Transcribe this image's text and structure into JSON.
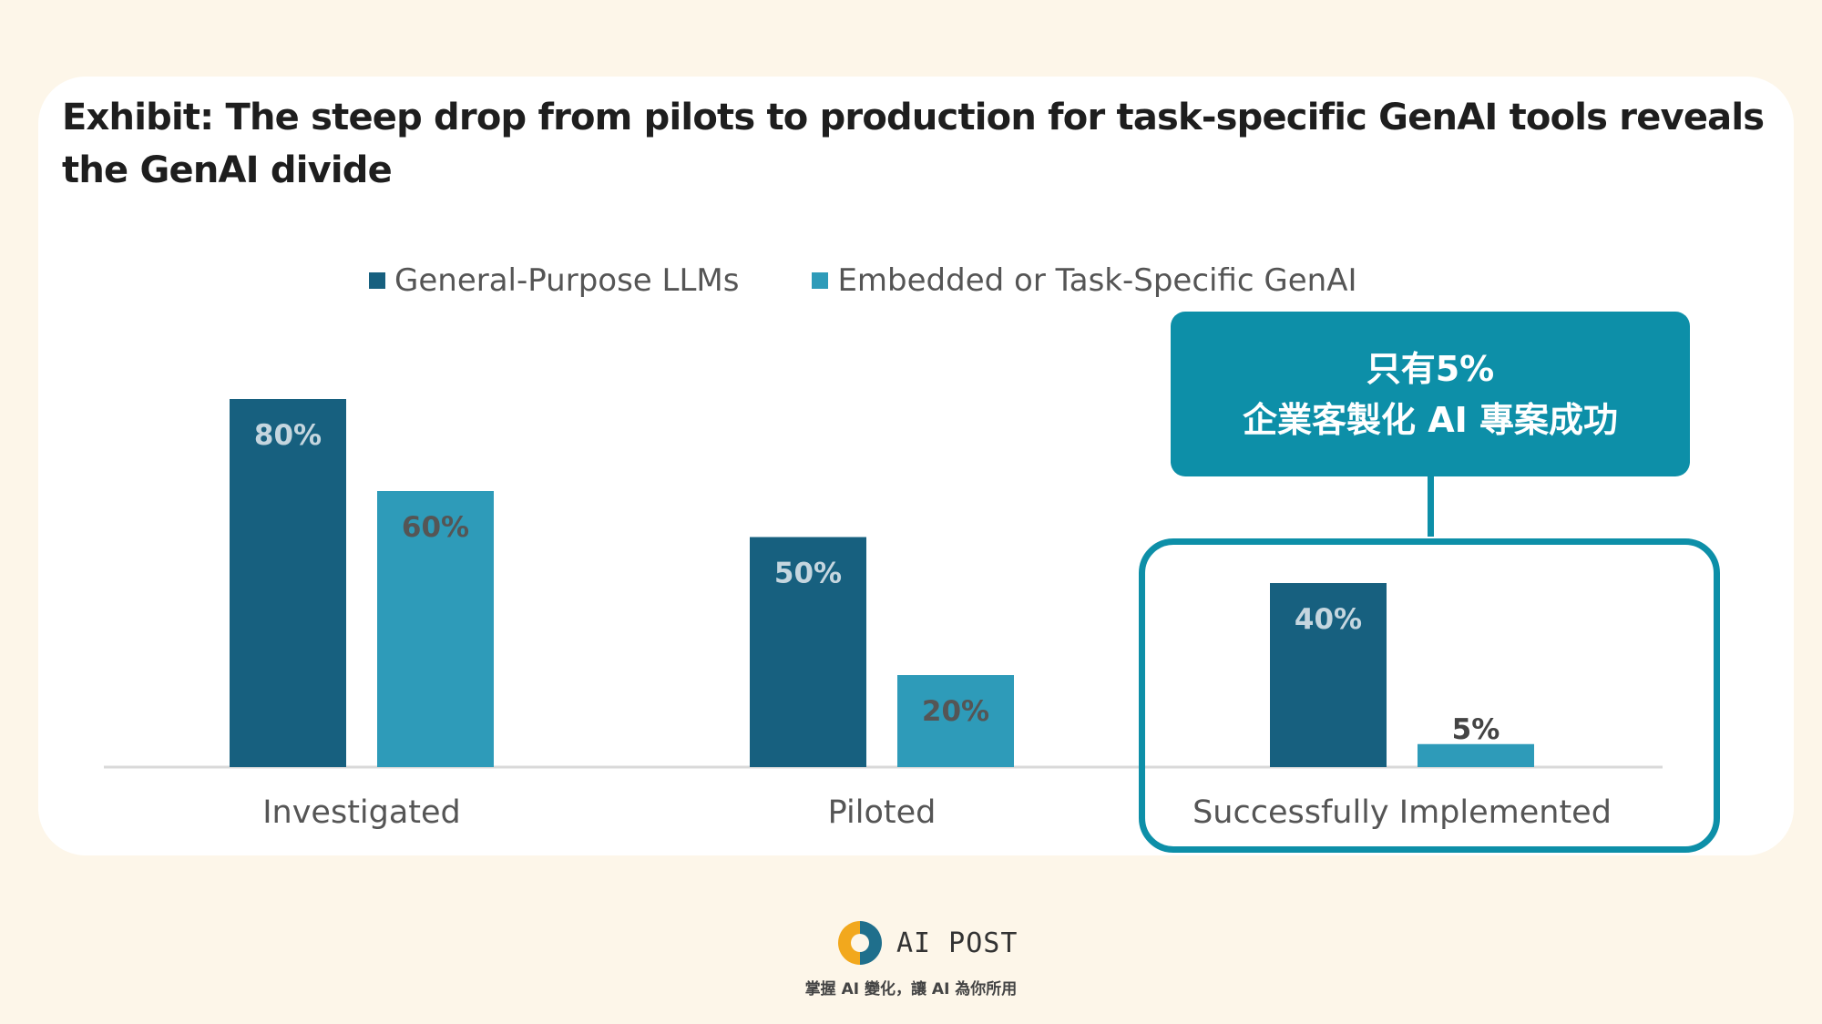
{
  "chart_data": {
    "type": "bar",
    "title": "Exhibit: The steep drop from pilots to production for task-specific GenAI tools reveals the GenAI divide",
    "categories": [
      "Investigated",
      "Piloted",
      "Successfully Implemented"
    ],
    "series": [
      {
        "name": "General-Purpose LLMs",
        "values": [
          80,
          50,
          40
        ],
        "labels": [
          "80%",
          "50%",
          "40%"
        ],
        "color": "#17607f"
      },
      {
        "name": "Embedded or Task-Specific GenAI",
        "values": [
          60,
          20,
          5
        ],
        "labels": [
          "60%",
          "20%",
          "5%"
        ],
        "color": "#2e9bb9"
      }
    ],
    "ylim": [
      0,
      100
    ],
    "xlabel": "",
    "ylabel": "",
    "legend_position": "top-center",
    "grid": false
  },
  "callout": {
    "line1": "只有5%",
    "line2": "企業客製化 AI 專案成功",
    "highlight_category": "Successfully Implemented"
  },
  "footer": {
    "brand": "AI POST",
    "tagline": "掌握 AI 變化，讓 AI 為你所用"
  },
  "colors": {
    "background": "#fdf6e9",
    "accent": "#0d8fa8",
    "dark_bar": "#17607f",
    "light_bar": "#2e9bb9"
  }
}
